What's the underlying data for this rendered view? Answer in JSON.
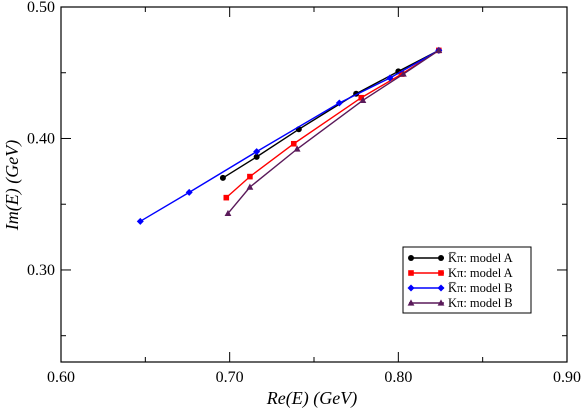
{
  "chart_data": {
    "type": "line",
    "xlabel": "Re(E) (GeV)",
    "ylabel": "Im(E) (GeV)",
    "xlim": [
      0.6,
      0.9
    ],
    "ylim": [
      0.23,
      0.5
    ],
    "x_ticks": [
      "0.60",
      "0.70",
      "0.80",
      "0.90"
    ],
    "y_ticks": [
      "0.30",
      "0.40",
      "0.50"
    ],
    "x_tick_values": [
      0.6,
      0.7,
      0.8,
      0.9
    ],
    "y_tick_values": [
      0.3,
      0.4,
      0.5
    ],
    "grid": false,
    "legend_position": "bottom-right",
    "series": [
      {
        "name": "K̅π: model A",
        "color": "#000000",
        "marker": "circle",
        "points": [
          [
            0.696,
            0.37
          ],
          [
            0.716,
            0.386
          ],
          [
            0.741,
            0.407
          ],
          [
            0.775,
            0.434
          ],
          [
            0.8,
            0.451
          ],
          [
            0.824,
            0.467
          ]
        ]
      },
      {
        "name": "Kπ: model A",
        "color": "#ff0000",
        "marker": "square",
        "points": [
          [
            0.698,
            0.355
          ],
          [
            0.712,
            0.371
          ],
          [
            0.738,
            0.396
          ],
          [
            0.778,
            0.431
          ],
          [
            0.802,
            0.449
          ],
          [
            0.824,
            0.467
          ]
        ]
      },
      {
        "name": "K̅π: model B",
        "color": "#0000ff",
        "marker": "diamond",
        "points": [
          [
            0.647,
            0.337
          ],
          [
            0.676,
            0.359
          ],
          [
            0.716,
            0.39
          ],
          [
            0.765,
            0.427
          ],
          [
            0.795,
            0.446
          ],
          [
            0.824,
            0.467
          ]
        ]
      },
      {
        "name": "Kπ: model B",
        "color": "#5a1a5a",
        "marker": "triangle",
        "points": [
          [
            0.699,
            0.343
          ],
          [
            0.712,
            0.363
          ],
          [
            0.74,
            0.392
          ],
          [
            0.779,
            0.429
          ],
          [
            0.803,
            0.449
          ],
          [
            0.824,
            0.467
          ]
        ]
      }
    ]
  }
}
